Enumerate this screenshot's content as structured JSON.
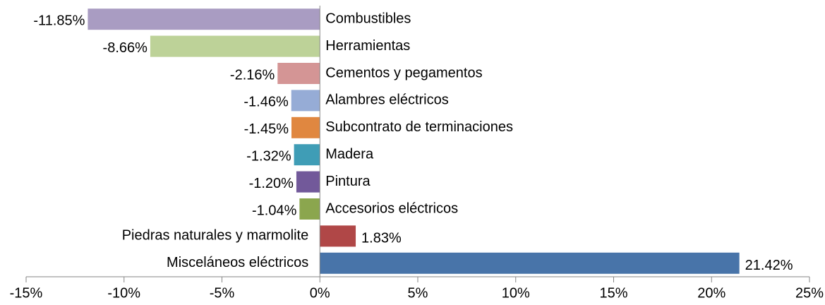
{
  "chart_data": {
    "type": "hbar",
    "categories": [
      "Combustibles",
      "Herramientas",
      "Cementos y pegamentos",
      "Alambres eléctricos",
      "Subcontrato de terminaciones",
      "Madera",
      "Pintura",
      "Accesorios eléctricos",
      "Piedras naturales y marmolite",
      "Misceláneos eléctricos"
    ],
    "values": [
      -11.85,
      -8.66,
      -2.16,
      -1.46,
      -1.45,
      -1.32,
      -1.2,
      -1.04,
      1.83,
      21.42
    ],
    "value_labels": [
      "-11.85%",
      "-8.66%",
      "-2.16%",
      "-1.46%",
      "-1.45%",
      "-1.32%",
      "-1.20%",
      "-1.04%",
      "1.83%",
      "21.42%"
    ],
    "colors": [
      "#a99cc2",
      "#bdd298",
      "#d49595",
      "#96acd6",
      "#e08740",
      "#3f9db6",
      "#72599a",
      "#8ba64e",
      "#b04747",
      "#4874a9"
    ],
    "xlim": [
      -15,
      25
    ],
    "xticks": [
      {
        "value": -15,
        "label": "-15%"
      },
      {
        "value": -10,
        "label": "-10%"
      },
      {
        "value": -5,
        "label": "-5%"
      },
      {
        "value": 0,
        "label": "0%"
      },
      {
        "value": 5,
        "label": "5%"
      },
      {
        "value": 10,
        "label": "10%"
      },
      {
        "value": 15,
        "label": "15%"
      },
      {
        "value": 20,
        "label": "20%"
      },
      {
        "value": 25,
        "label": "25%"
      }
    ]
  }
}
